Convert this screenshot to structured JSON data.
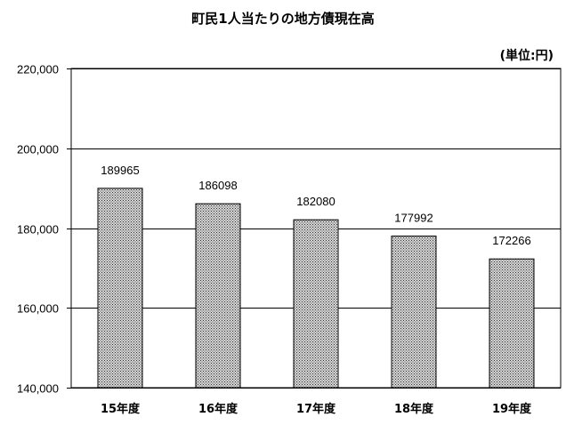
{
  "page": {
    "title": "町民1人当たりの地方債現在高",
    "unit": "(単位:円)"
  },
  "chart_data": {
    "type": "bar",
    "title": "町民1人当たりの地方債現在高",
    "unit": "(単位:円)",
    "categories": [
      "15年度",
      "16年度",
      "17年度",
      "18年度",
      "19年度"
    ],
    "values": [
      189965,
      186098,
      182080,
      177992,
      172266
    ],
    "data_labels": [
      "189965",
      "186098",
      "182080",
      "177992",
      "172266"
    ],
    "ylim": [
      140000,
      220000
    ],
    "yticks": [
      140000,
      160000,
      180000,
      200000,
      220000
    ],
    "ytick_labels": [
      "140,000",
      "160,000",
      "180,000",
      "200,000",
      "220,000"
    ],
    "grid": true,
    "bar_fill": "#9a9a9a",
    "bar_pattern": "dotted"
  }
}
